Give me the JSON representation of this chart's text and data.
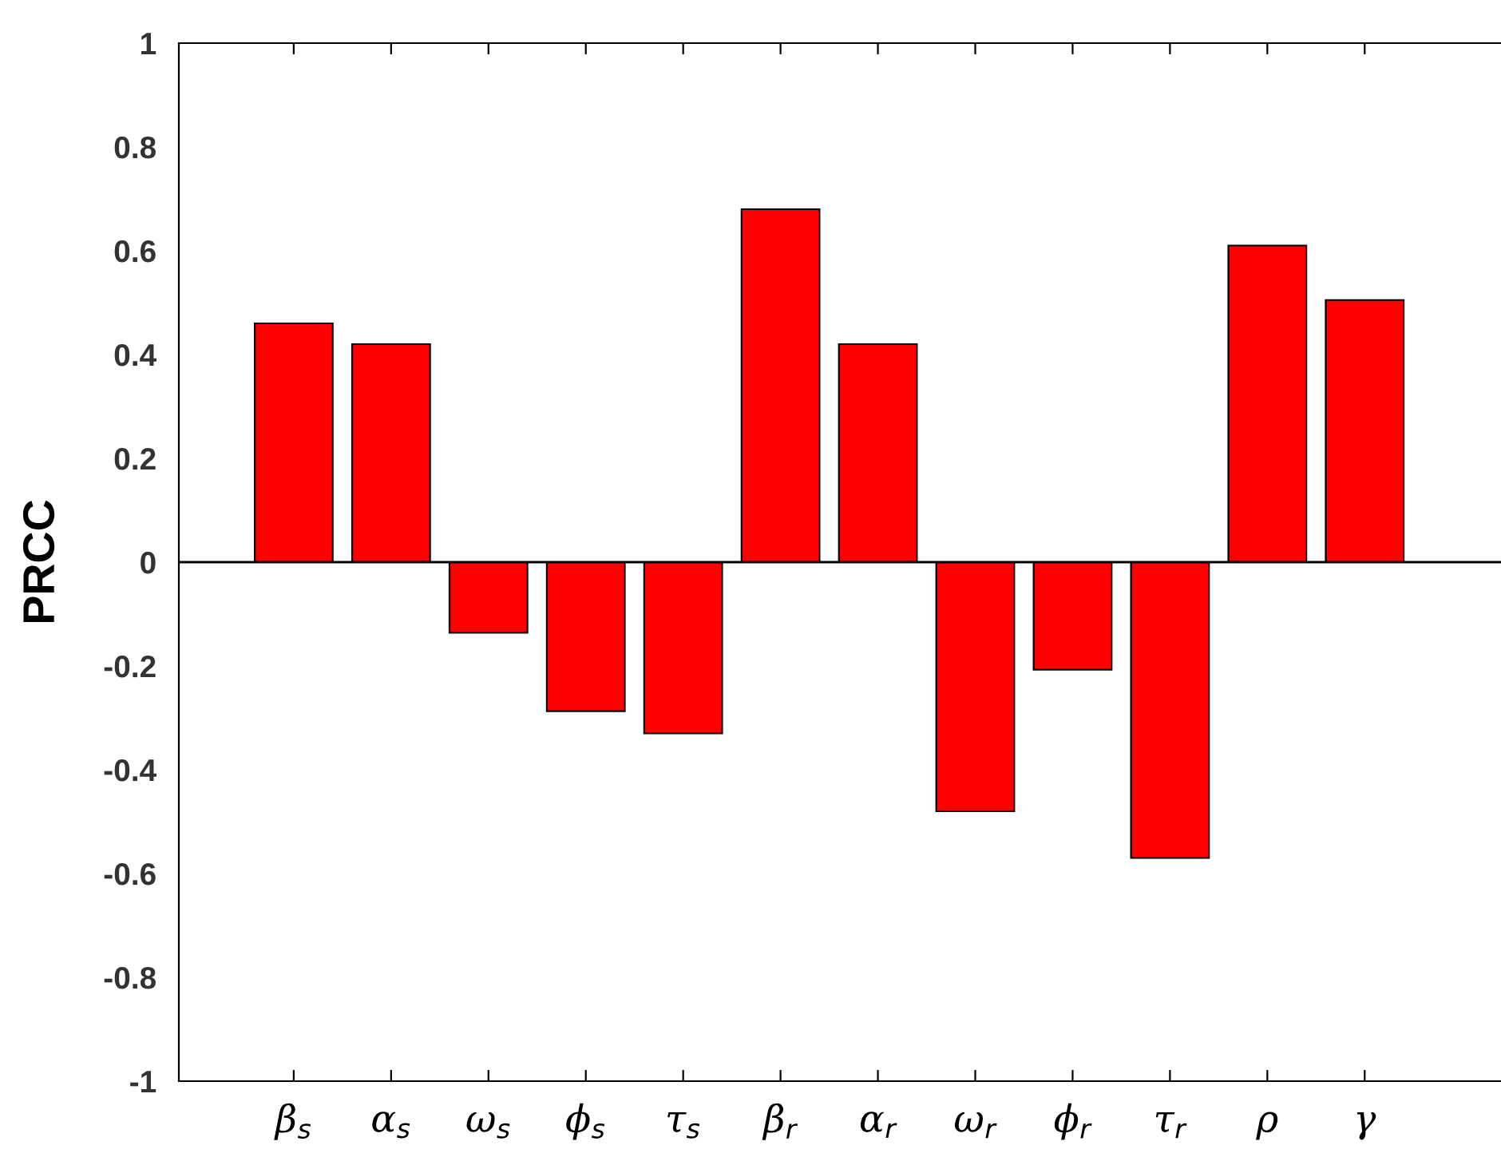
{
  "chart_data": {
    "type": "bar",
    "ylabel": "PRCC",
    "categories": [
      "β$_{s}$",
      "α$_{s}$",
      "ω$_{s}$",
      "ϕ$_{s}$",
      "τ$_{s}$",
      "β$_{r}$",
      "α$_{r}$",
      "ω$_{r}$",
      "ϕ$_{r}$",
      "τ$_{r}$",
      "ρ",
      "γ"
    ],
    "values": [
      0.46,
      0.42,
      -0.136,
      -0.287,
      -0.33,
      0.68,
      0.42,
      -0.48,
      -0.207,
      -0.57,
      0.61,
      0.505
    ],
    "color": "#ff0000",
    "ylim": [
      -1,
      1
    ],
    "yticks": [
      -1,
      -0.8,
      -0.6,
      -0.4,
      -0.2,
      0,
      0.2,
      0.4,
      0.6,
      0.8,
      1
    ],
    "ref_lines": [
      {
        "axis": "y",
        "value": 0,
        "color": "#000000"
      }
    ]
  }
}
